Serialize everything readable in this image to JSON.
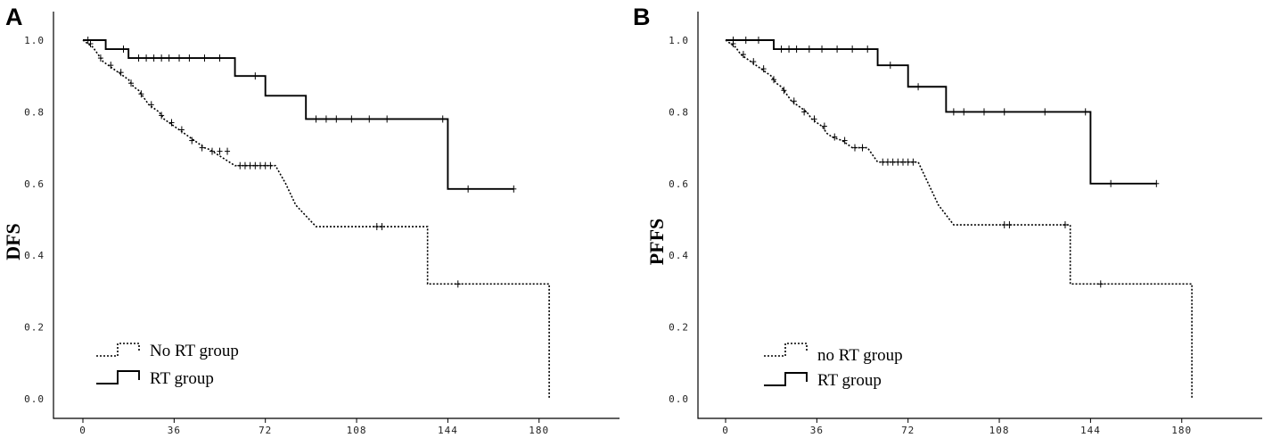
{
  "chart_data": [
    {
      "type": "line",
      "panel_label": "A",
      "title": "",
      "xlabel": "",
      "ylabel": "DFS",
      "xlim": [
        0,
        192
      ],
      "ylim": [
        0,
        1
      ],
      "xticks": [
        "0",
        "36",
        "72",
        "108",
        "144",
        "180"
      ],
      "xtick_values": [
        0,
        36,
        72,
        108,
        144,
        180
      ],
      "yticks": [
        "0.0",
        "0.2",
        "0.4",
        "0.6",
        "0.8",
        "1.0"
      ],
      "ytick_values": [
        0,
        0.2,
        0.4,
        0.6,
        0.8,
        1.0
      ],
      "legend_placement": "bottom-left",
      "series": [
        {
          "name": "No RT group",
          "style": "dotted",
          "points": [
            [
              0,
              1
            ],
            [
              2,
              0.99
            ],
            [
              4,
              0.98
            ],
            [
              6,
              0.96
            ],
            [
              8,
              0.94
            ],
            [
              10,
              0.93
            ],
            [
              12,
              0.92
            ],
            [
              14,
              0.91
            ],
            [
              16,
              0.9
            ],
            [
              18,
              0.89
            ],
            [
              20,
              0.87
            ],
            [
              22,
              0.86
            ],
            [
              24,
              0.84
            ],
            [
              26,
              0.82
            ],
            [
              28,
              0.81
            ],
            [
              30,
              0.8
            ],
            [
              32,
              0.78
            ],
            [
              34,
              0.77
            ],
            [
              36,
              0.76
            ],
            [
              38,
              0.75
            ],
            [
              40,
              0.74
            ],
            [
              42,
              0.73
            ],
            [
              44,
              0.72
            ],
            [
              46,
              0.71
            ],
            [
              48,
              0.7
            ],
            [
              50,
              0.695
            ],
            [
              60,
              0.65
            ],
            [
              76,
              0.65
            ],
            [
              80,
              0.6
            ],
            [
              84,
              0.54
            ],
            [
              92,
              0.48
            ],
            [
              136,
              0.48
            ],
            [
              136,
              0.32
            ],
            [
              184,
              0.32
            ],
            [
              184,
              0.0
            ]
          ],
          "censored": [
            [
              3,
              0.99
            ],
            [
              7,
              0.95
            ],
            [
              11,
              0.93
            ],
            [
              15,
              0.91
            ],
            [
              19,
              0.88
            ],
            [
              23,
              0.85
            ],
            [
              27,
              0.82
            ],
            [
              31,
              0.79
            ],
            [
              35,
              0.77
            ],
            [
              39,
              0.75
            ],
            [
              43,
              0.72
            ],
            [
              47,
              0.7
            ],
            [
              51,
              0.69
            ],
            [
              54,
              0.69
            ],
            [
              57,
              0.69
            ],
            [
              62,
              0.65
            ],
            [
              64,
              0.65
            ],
            [
              66,
              0.65
            ],
            [
              68,
              0.65
            ],
            [
              70,
              0.65
            ],
            [
              72,
              0.65
            ],
            [
              74,
              0.65
            ],
            [
              116,
              0.48
            ],
            [
              118,
              0.48
            ],
            [
              148,
              0.32
            ]
          ]
        },
        {
          "name": "RT group",
          "style": "solid",
          "points": [
            [
              0,
              1
            ],
            [
              9,
              1
            ],
            [
              9,
              0.975
            ],
            [
              18,
              0.975
            ],
            [
              18,
              0.95
            ],
            [
              60,
              0.95
            ],
            [
              60,
              0.9
            ],
            [
              72,
              0.9
            ],
            [
              72,
              0.845
            ],
            [
              88,
              0.845
            ],
            [
              88,
              0.78
            ],
            [
              144,
              0.78
            ],
            [
              144,
              0.585
            ],
            [
              170,
              0.585
            ]
          ],
          "censored": [
            [
              2,
              1
            ],
            [
              16,
              0.975
            ],
            [
              22,
              0.95
            ],
            [
              25,
              0.95
            ],
            [
              28,
              0.95
            ],
            [
              31,
              0.95
            ],
            [
              34,
              0.95
            ],
            [
              38,
              0.95
            ],
            [
              42,
              0.95
            ],
            [
              48,
              0.95
            ],
            [
              54,
              0.95
            ],
            [
              68,
              0.9
            ],
            [
              92,
              0.78
            ],
            [
              96,
              0.78
            ],
            [
              100,
              0.78
            ],
            [
              106,
              0.78
            ],
            [
              113,
              0.78
            ],
            [
              120,
              0.78
            ],
            [
              142,
              0.78
            ],
            [
              152,
              0.585
            ],
            [
              170,
              0.585
            ]
          ]
        }
      ]
    },
    {
      "type": "line",
      "panel_label": "B",
      "title": "",
      "xlabel": "",
      "ylabel": "PFFS",
      "xlim": [
        0,
        192
      ],
      "ylim": [
        0,
        1
      ],
      "xticks": [
        "0",
        "36",
        "72",
        "108",
        "144",
        "180"
      ],
      "xtick_values": [
        0,
        36,
        72,
        108,
        144,
        180
      ],
      "yticks": [
        "0.0",
        "0.2",
        "0.4",
        "0.6",
        "0.8",
        "1.0"
      ],
      "ytick_values": [
        0,
        0.2,
        0.4,
        0.6,
        0.8,
        1.0
      ],
      "legend_placement": "bottom-left",
      "series": [
        {
          "name": "no RT group",
          "style": "dotted",
          "points": [
            [
              0,
              1
            ],
            [
              2,
              0.99
            ],
            [
              4,
              0.98
            ],
            [
              6,
              0.96
            ],
            [
              8,
              0.95
            ],
            [
              10,
              0.94
            ],
            [
              12,
              0.93
            ],
            [
              14,
              0.92
            ],
            [
              16,
              0.91
            ],
            [
              18,
              0.9
            ],
            [
              20,
              0.88
            ],
            [
              22,
              0.87
            ],
            [
              24,
              0.85
            ],
            [
              26,
              0.83
            ],
            [
              28,
              0.82
            ],
            [
              30,
              0.81
            ],
            [
              32,
              0.8
            ],
            [
              34,
              0.78
            ],
            [
              36,
              0.77
            ],
            [
              38,
              0.76
            ],
            [
              40,
              0.74
            ],
            [
              42,
              0.73
            ],
            [
              46,
              0.72
            ],
            [
              50,
              0.7
            ],
            [
              56,
              0.7
            ],
            [
              60,
              0.66
            ],
            [
              76,
              0.66
            ],
            [
              80,
              0.6
            ],
            [
              84,
              0.54
            ],
            [
              90,
              0.485
            ],
            [
              136,
              0.485
            ],
            [
              136,
              0.32
            ],
            [
              184,
              0.32
            ],
            [
              184,
              0.0
            ]
          ],
          "censored": [
            [
              3,
              0.99
            ],
            [
              7,
              0.96
            ],
            [
              11,
              0.94
            ],
            [
              15,
              0.92
            ],
            [
              19,
              0.89
            ],
            [
              23,
              0.86
            ],
            [
              27,
              0.83
            ],
            [
              31,
              0.8
            ],
            [
              35,
              0.78
            ],
            [
              39,
              0.76
            ],
            [
              43,
              0.73
            ],
            [
              47,
              0.72
            ],
            [
              51,
              0.7
            ],
            [
              54,
              0.7
            ],
            [
              62,
              0.66
            ],
            [
              64,
              0.66
            ],
            [
              66,
              0.66
            ],
            [
              68,
              0.66
            ],
            [
              70,
              0.66
            ],
            [
              72,
              0.66
            ],
            [
              74,
              0.66
            ],
            [
              110,
              0.485
            ],
            [
              112,
              0.485
            ],
            [
              134,
              0.485
            ],
            [
              148,
              0.32
            ]
          ]
        },
        {
          "name": "RT group",
          "style": "solid",
          "points": [
            [
              0,
              1
            ],
            [
              19,
              1
            ],
            [
              19,
              0.975
            ],
            [
              60,
              0.975
            ],
            [
              60,
              0.93
            ],
            [
              72,
              0.93
            ],
            [
              72,
              0.87
            ],
            [
              87,
              0.87
            ],
            [
              87,
              0.8
            ],
            [
              144,
              0.8
            ],
            [
              144,
              0.6
            ],
            [
              170,
              0.6
            ]
          ],
          "censored": [
            [
              3,
              1
            ],
            [
              8,
              1
            ],
            [
              13,
              1
            ],
            [
              22,
              0.975
            ],
            [
              25,
              0.975
            ],
            [
              28,
              0.975
            ],
            [
              33,
              0.975
            ],
            [
              38,
              0.975
            ],
            [
              44,
              0.975
            ],
            [
              50,
              0.975
            ],
            [
              56,
              0.975
            ],
            [
              65,
              0.93
            ],
            [
              76,
              0.87
            ],
            [
              90,
              0.8
            ],
            [
              94,
              0.8
            ],
            [
              102,
              0.8
            ],
            [
              110,
              0.8
            ],
            [
              126,
              0.8
            ],
            [
              142,
              0.8
            ],
            [
              152,
              0.6
            ],
            [
              170,
              0.6
            ]
          ]
        }
      ]
    }
  ]
}
